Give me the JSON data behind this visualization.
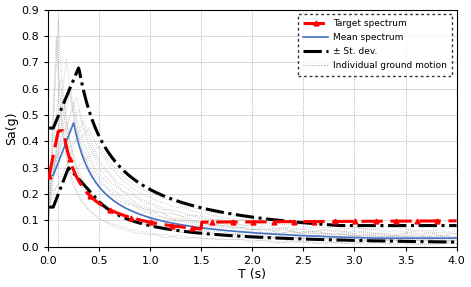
{
  "xlabel": "T (s)",
  "ylabel": "Sa(g)",
  "xlim": [
    0,
    4
  ],
  "ylim": [
    0,
    0.9
  ],
  "xticks": [
    0,
    0.5,
    1,
    1.5,
    2,
    2.5,
    3,
    3.5,
    4
  ],
  "yticks": [
    0,
    0.1,
    0.2,
    0.3,
    0.4,
    0.5,
    0.6,
    0.7,
    0.8,
    0.9
  ],
  "target_color": "#FF0000",
  "mean_color": "#4472C4",
  "stdev_color": "#000000",
  "individual_color": "#A0A0A0",
  "vline_color": "#6699CC",
  "legend_labels": [
    "Target spectrum",
    "Mean spectrum",
    "± St. dev.",
    "Individual ground motion"
  ]
}
